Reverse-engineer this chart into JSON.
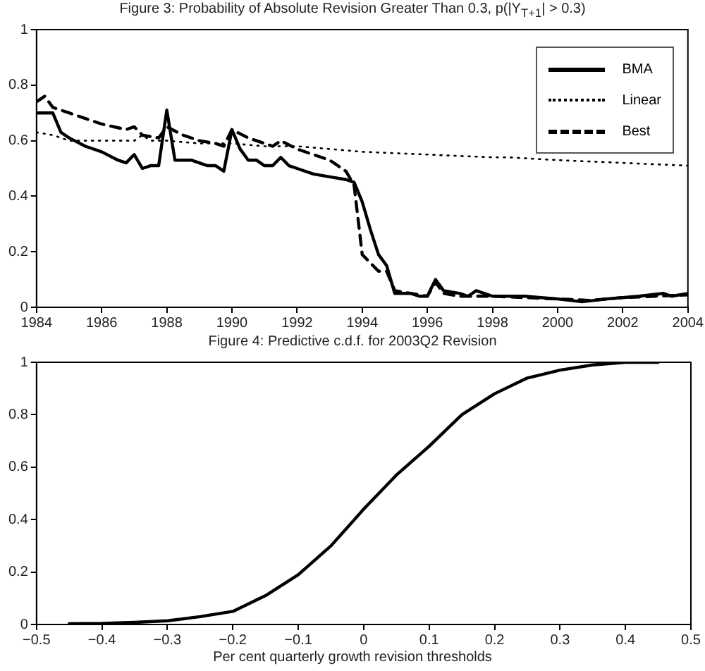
{
  "chart_data": [
    {
      "type": "line",
      "title": "Figure 3: Probability of Absolute Revision Greater Than 0.3, p(|Y$_{T+1}$| > 0.3)",
      "xlim": [
        1984,
        2004
      ],
      "xticks": [
        1984,
        1986,
        1988,
        1990,
        1992,
        1994,
        1996,
        1998,
        2000,
        2002,
        2004
      ],
      "ylim": [
        0,
        1
      ],
      "yticks": [
        0,
        0.2,
        0.4,
        0.6,
        0.8,
        1
      ],
      "grid": false,
      "legend": "top right",
      "marker": "none",
      "series": [
        {
          "name": "BMA",
          "color": "#000000",
          "line_style": "solid",
          "x": [
            1984,
            1984.5,
            1984.75,
            1985,
            1985.5,
            1986,
            1986.5,
            1986.75,
            1987,
            1987.25,
            1987.5,
            1987.75,
            1988,
            1988.25,
            1988.75,
            1989.25,
            1989.5,
            1989.75,
            1990,
            1990.25,
            1990.5,
            1990.75,
            1991,
            1991.25,
            1991.5,
            1991.75,
            1992,
            1992.5,
            1993,
            1993.5,
            1993.75,
            1994,
            1994.25,
            1994.5,
            1994.75,
            1995,
            1995.5,
            1995.75,
            1996,
            1996.25,
            1996.5,
            1997,
            1997.25,
            1997.5,
            1998,
            1999,
            2000,
            2000.75,
            2001.5,
            2002.5,
            2003.25,
            2003.5,
            2004
          ],
          "values": [
            0.7,
            0.7,
            0.63,
            0.61,
            0.58,
            0.56,
            0.53,
            0.52,
            0.55,
            0.5,
            0.51,
            0.51,
            0.71,
            0.53,
            0.53,
            0.51,
            0.51,
            0.49,
            0.64,
            0.57,
            0.53,
            0.53,
            0.51,
            0.51,
            0.54,
            0.51,
            0.5,
            0.48,
            0.47,
            0.46,
            0.45,
            0.38,
            0.28,
            0.19,
            0.15,
            0.05,
            0.05,
            0.04,
            0.04,
            0.1,
            0.06,
            0.05,
            0.04,
            0.06,
            0.04,
            0.04,
            0.03,
            0.02,
            0.03,
            0.04,
            0.05,
            0.04,
            0.05
          ]
        },
        {
          "name": "Linear",
          "color": "#000000",
          "line_style": "dotted",
          "x": [
            1984,
            1984.5,
            1985,
            1986,
            1987,
            1987.25,
            1987.5,
            1988,
            1989,
            1990,
            1991,
            1992,
            1993,
            1994,
            1996,
            1998,
            1998.5,
            2000,
            2002,
            2004
          ],
          "values": [
            0.63,
            0.62,
            0.6,
            0.6,
            0.6,
            0.62,
            0.6,
            0.6,
            0.59,
            0.59,
            0.58,
            0.58,
            0.57,
            0.56,
            0.55,
            0.54,
            0.54,
            0.53,
            0.52,
            0.51
          ]
        },
        {
          "name": "Best",
          "color": "#000000",
          "line_style": "dashed",
          "x": [
            1984,
            1984.25,
            1984.5,
            1985,
            1985.5,
            1986,
            1986.75,
            1987,
            1987.25,
            1987.75,
            1988,
            1988.5,
            1989,
            1989.5,
            1989.75,
            1990,
            1990.5,
            1991,
            1991.25,
            1991.5,
            1992,
            1992.5,
            1993,
            1993.5,
            1993.75,
            1994,
            1994.5,
            1994.75,
            1995,
            1995.5,
            1996,
            1996.25,
            1996.5,
            1997,
            1998,
            1999,
            2000,
            2001,
            2002,
            2003,
            2004
          ],
          "values": [
            0.74,
            0.76,
            0.72,
            0.7,
            0.68,
            0.66,
            0.64,
            0.65,
            0.62,
            0.61,
            0.65,
            0.62,
            0.6,
            0.59,
            0.58,
            0.64,
            0.61,
            0.59,
            0.58,
            0.6,
            0.57,
            0.55,
            0.53,
            0.49,
            0.44,
            0.19,
            0.13,
            0.13,
            0.06,
            0.05,
            0.04,
            0.09,
            0.05,
            0.04,
            0.04,
            0.035,
            0.03,
            0.025,
            0.035,
            0.04,
            0.045
          ]
        }
      ]
    },
    {
      "type": "line",
      "title": "Figure 4: Predictive c.d.f. for 2003Q2 Revision",
      "xlabel": "Per cent quarterly growth revision thresholds",
      "xlim": [
        -0.5,
        0.5
      ],
      "xticks": [
        -0.5,
        -0.4,
        -0.3,
        -0.2,
        -0.1,
        0,
        0.1,
        0.2,
        0.3,
        0.4,
        0.5
      ],
      "ylim": [
        0,
        1
      ],
      "yticks": [
        0,
        0.2,
        0.4,
        0.6,
        0.8,
        1
      ],
      "grid": false,
      "marker": "none",
      "series": [
        {
          "color": "#000000",
          "line_style": "solid",
          "x": [
            -0.45,
            -0.4,
            -0.35,
            -0.3,
            -0.25,
            -0.2,
            -0.15,
            -0.1,
            -0.05,
            0,
            0.05,
            0.1,
            0.15,
            0.2,
            0.25,
            0.3,
            0.35,
            0.4,
            0.45
          ],
          "values": [
            0.003,
            0.004,
            0.008,
            0.014,
            0.03,
            0.05,
            0.11,
            0.19,
            0.3,
            0.44,
            0.57,
            0.68,
            0.8,
            0.88,
            0.94,
            0.97,
            0.99,
            1,
            1
          ]
        }
      ]
    }
  ]
}
